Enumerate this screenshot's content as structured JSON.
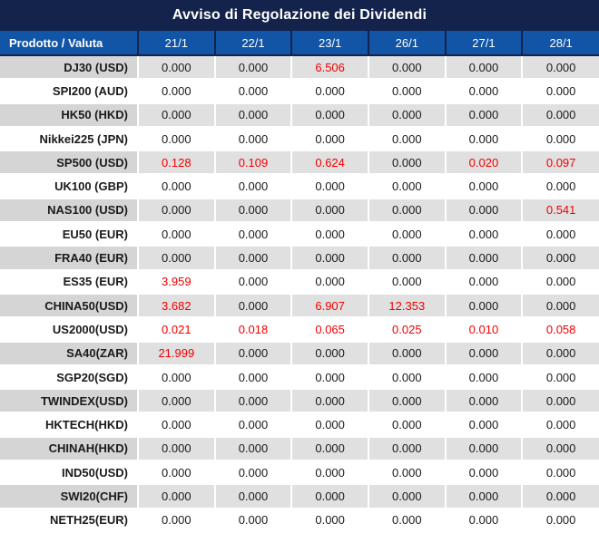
{
  "title": "Avviso di Regolazione dei Dividendi",
  "table": {
    "header": {
      "product_col": "Prodotto / Valuta",
      "dates": [
        "21/1",
        "22/1",
        "23/1",
        "26/1",
        "27/1",
        "28/1"
      ]
    },
    "rows": [
      {
        "product": "DJ30 (USD)",
        "values": [
          "0.000",
          "0.000",
          "6.506",
          "0.000",
          "0.000",
          "0.000"
        ],
        "red": [
          false,
          false,
          true,
          false,
          false,
          false
        ]
      },
      {
        "product": "SPI200 (AUD)",
        "values": [
          "0.000",
          "0.000",
          "0.000",
          "0.000",
          "0.000",
          "0.000"
        ],
        "red": [
          false,
          false,
          false,
          false,
          false,
          false
        ]
      },
      {
        "product": "HK50 (HKD)",
        "values": [
          "0.000",
          "0.000",
          "0.000",
          "0.000",
          "0.000",
          "0.000"
        ],
        "red": [
          false,
          false,
          false,
          false,
          false,
          false
        ]
      },
      {
        "product": "Nikkei225 (JPN)",
        "values": [
          "0.000",
          "0.000",
          "0.000",
          "0.000",
          "0.000",
          "0.000"
        ],
        "red": [
          false,
          false,
          false,
          false,
          false,
          false
        ]
      },
      {
        "product": "SP500 (USD)",
        "values": [
          "0.128",
          "0.109",
          "0.624",
          "0.000",
          "0.020",
          "0.097"
        ],
        "red": [
          true,
          true,
          true,
          false,
          true,
          true
        ]
      },
      {
        "product": "UK100 (GBP)",
        "values": [
          "0.000",
          "0.000",
          "0.000",
          "0.000",
          "0.000",
          "0.000"
        ],
        "red": [
          false,
          false,
          false,
          false,
          false,
          false
        ]
      },
      {
        "product": "NAS100 (USD)",
        "values": [
          "0.000",
          "0.000",
          "0.000",
          "0.000",
          "0.000",
          "0.541"
        ],
        "red": [
          false,
          false,
          false,
          false,
          false,
          true
        ]
      },
      {
        "product": "EU50 (EUR)",
        "values": [
          "0.000",
          "0.000",
          "0.000",
          "0.000",
          "0.000",
          "0.000"
        ],
        "red": [
          false,
          false,
          false,
          false,
          false,
          false
        ]
      },
      {
        "product": "FRA40 (EUR)",
        "values": [
          "0.000",
          "0.000",
          "0.000",
          "0.000",
          "0.000",
          "0.000"
        ],
        "red": [
          false,
          false,
          false,
          false,
          false,
          false
        ]
      },
      {
        "product": "ES35 (EUR)",
        "values": [
          "3.959",
          "0.000",
          "0.000",
          "0.000",
          "0.000",
          "0.000"
        ],
        "red": [
          true,
          false,
          false,
          false,
          false,
          false
        ]
      },
      {
        "product": "CHINA50(USD)",
        "values": [
          "3.682",
          "0.000",
          "6.907",
          "12.353",
          "0.000",
          "0.000"
        ],
        "red": [
          true,
          false,
          true,
          true,
          false,
          false
        ]
      },
      {
        "product": "US2000(USD)",
        "values": [
          "0.021",
          "0.018",
          "0.065",
          "0.025",
          "0.010",
          "0.058"
        ],
        "red": [
          true,
          true,
          true,
          true,
          true,
          true
        ]
      },
      {
        "product": "SA40(ZAR)",
        "values": [
          "21.999",
          "0.000",
          "0.000",
          "0.000",
          "0.000",
          "0.000"
        ],
        "red": [
          true,
          false,
          false,
          false,
          false,
          false
        ]
      },
      {
        "product": "SGP20(SGD)",
        "values": [
          "0.000",
          "0.000",
          "0.000",
          "0.000",
          "0.000",
          "0.000"
        ],
        "red": [
          false,
          false,
          false,
          false,
          false,
          false
        ]
      },
      {
        "product": "TWINDEX(USD)",
        "values": [
          "0.000",
          "0.000",
          "0.000",
          "0.000",
          "0.000",
          "0.000"
        ],
        "red": [
          false,
          false,
          false,
          false,
          false,
          false
        ]
      },
      {
        "product": "HKTECH(HKD)",
        "values": [
          "0.000",
          "0.000",
          "0.000",
          "0.000",
          "0.000",
          "0.000"
        ],
        "red": [
          false,
          false,
          false,
          false,
          false,
          false
        ]
      },
      {
        "product": "CHINAH(HKD)",
        "values": [
          "0.000",
          "0.000",
          "0.000",
          "0.000",
          "0.000",
          "0.000"
        ],
        "red": [
          false,
          false,
          false,
          false,
          false,
          false
        ]
      },
      {
        "product": "IND50(USD)",
        "values": [
          "0.000",
          "0.000",
          "0.000",
          "0.000",
          "0.000",
          "0.000"
        ],
        "red": [
          false,
          false,
          false,
          false,
          false,
          false
        ]
      },
      {
        "product": "SWI20(CHF)",
        "values": [
          "0.000",
          "0.000",
          "0.000",
          "0.000",
          "0.000",
          "0.000"
        ],
        "red": [
          false,
          false,
          false,
          false,
          false,
          false
        ]
      },
      {
        "product": "NETH25(EUR)",
        "values": [
          "0.000",
          "0.000",
          "0.000",
          "0.000",
          "0.000",
          "0.000"
        ],
        "red": [
          false,
          false,
          false,
          false,
          false,
          false
        ]
      }
    ]
  },
  "colors": {
    "title_bg": "#13234B",
    "header_bg": "#1254A5",
    "stripe_label_bg": "#D5D5D5",
    "stripe_cell_bg": "#E0E0E0",
    "red_text": "#F20000",
    "text_dark": "#1A1A1A"
  }
}
